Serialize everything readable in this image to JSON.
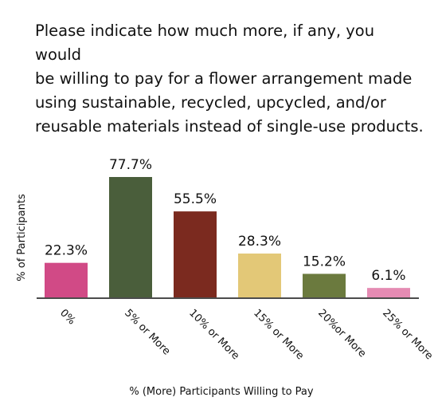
{
  "chart_data": {
    "type": "bar",
    "title": "Please indicate how much more, if any, you would\nbe willing to pay for a flower arrangement made\nusing sustainable, recycled, upcycled, and/or\nreusable materials instead of single-use products.",
    "xlabel": "% (More) Participants Willing to Pay",
    "ylabel": "% of Participants",
    "categories": [
      "0%",
      "5% or More",
      "10% or More",
      "15% or More",
      "20%or More",
      "25% or More"
    ],
    "values": [
      22.3,
      77.7,
      55.5,
      28.3,
      15.2,
      6.1
    ],
    "data_labels": [
      "22.3%",
      "77.7%",
      "55.5%",
      "28.3%",
      "15.2%",
      "6.1%"
    ],
    "colors": [
      "#d14a86",
      "#4a5e3b",
      "#7b2a1f",
      "#e3c877",
      "#6b7a3e",
      "#e58bb3"
    ],
    "axis_color": "#111111",
    "ylim": [
      0,
      77.7
    ],
    "grid": false,
    "legend": "none"
  }
}
